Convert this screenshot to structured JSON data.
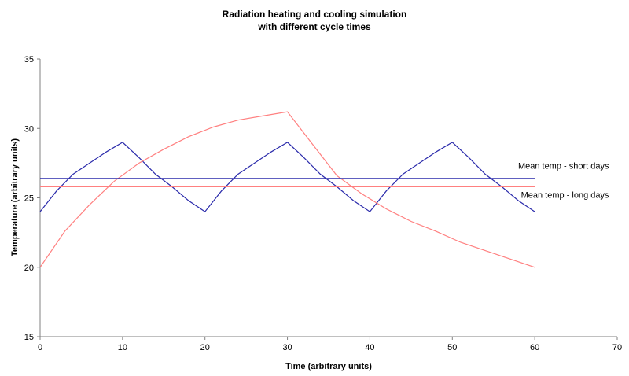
{
  "chart_data": {
    "type": "line",
    "title": [
      "Radiation heating and cooling simulation",
      "with different cycle times"
    ],
    "xlabel": "Time (arbitrary units)",
    "ylabel": "Temperature (arbitrary units)",
    "xlim": [
      0,
      70
    ],
    "ylim": [
      15,
      35
    ],
    "xticks": [
      "0",
      "10",
      "20",
      "30",
      "40",
      "50",
      "60",
      "70"
    ],
    "yticks": [
      "15",
      "20",
      "25",
      "30",
      "35"
    ],
    "grid": false,
    "legend": "none",
    "series": [
      {
        "key": "short-days",
        "color": "#2b2bab",
        "x": [
          0,
          2,
          4,
          6,
          8,
          10,
          12,
          14,
          16,
          18,
          20,
          22,
          24,
          26,
          28,
          30,
          32,
          34,
          36,
          38,
          40,
          42,
          44,
          46,
          48,
          50,
          52,
          54,
          56,
          58,
          60
        ],
        "y": [
          24.0,
          25.5,
          26.7,
          27.5,
          28.3,
          29.0,
          27.9,
          26.7,
          25.8,
          24.8,
          24.0,
          25.5,
          26.7,
          27.5,
          28.3,
          29.0,
          27.9,
          26.7,
          25.8,
          24.8,
          24.0,
          25.5,
          26.7,
          27.5,
          28.3,
          29.0,
          27.9,
          26.7,
          25.8,
          24.8,
          24.0
        ]
      },
      {
        "key": "long-days",
        "color": "#ff8080",
        "x": [
          0,
          3,
          6,
          9,
          12,
          15,
          18,
          21,
          24,
          27,
          30,
          33,
          36,
          39,
          42,
          45,
          48,
          51,
          54,
          57,
          60
        ],
        "y": [
          20.0,
          22.6,
          24.5,
          26.2,
          27.5,
          28.5,
          29.4,
          30.1,
          30.6,
          30.9,
          31.2,
          28.9,
          26.6,
          25.3,
          24.2,
          23.3,
          22.6,
          21.8,
          21.2,
          20.6,
          20.0
        ]
      },
      {
        "key": "mean-short",
        "color": "#2b2bab",
        "x": [
          0,
          60
        ],
        "y": [
          26.4,
          26.4
        ]
      },
      {
        "key": "mean-long",
        "color": "#ff8080",
        "x": [
          0,
          60
        ],
        "y": [
          25.8,
          25.8
        ]
      }
    ],
    "annotations": [
      {
        "text": "Mean temp - short days",
        "x": 69,
        "y": 27.1
      },
      {
        "text": "Mean temp - long days",
        "x": 69,
        "y": 25.0
      }
    ]
  }
}
